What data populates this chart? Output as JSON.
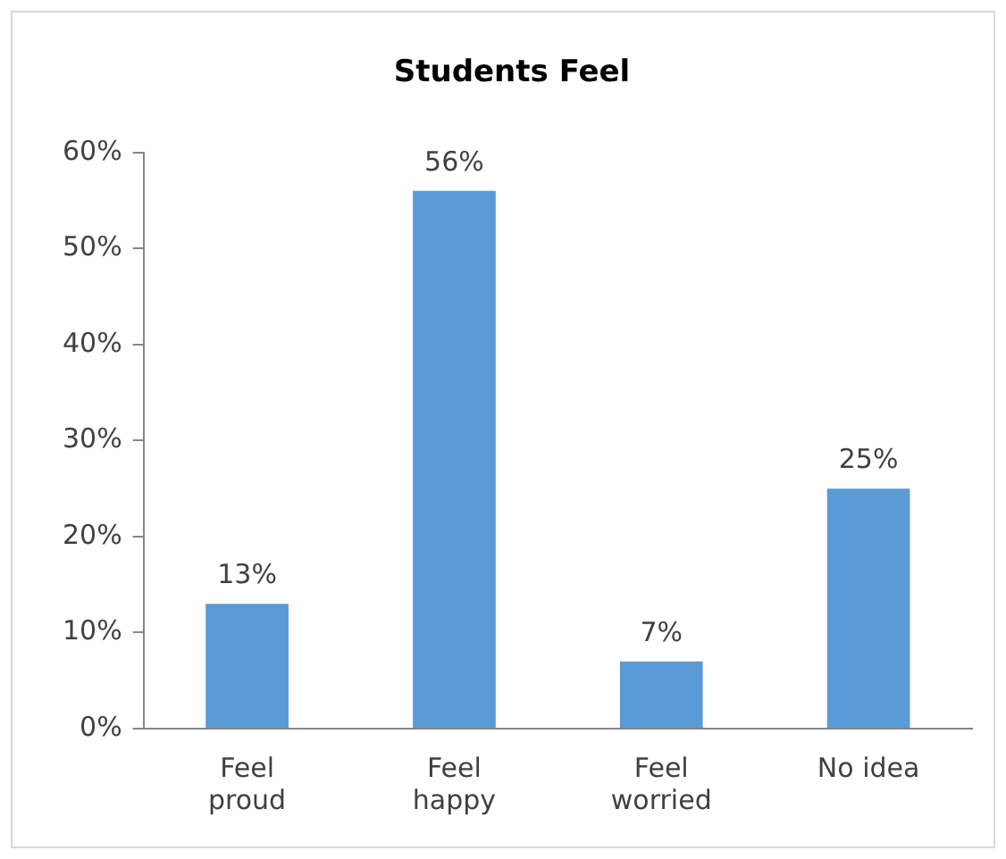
{
  "chart_data": {
    "type": "bar",
    "title": "Students Feel",
    "categories": [
      "Feel proud",
      "Feel happy",
      "Feel worried",
      "No idea"
    ],
    "values": [
      13,
      56,
      7,
      25
    ],
    "value_labels": [
      "13%",
      "56%",
      "7%",
      "25%"
    ],
    "color": "#5b9bd5",
    "ylim": [
      0,
      60
    ],
    "yticks": [
      {
        "value": 0,
        "label": "0%"
      },
      {
        "value": 10,
        "label": "10%"
      },
      {
        "value": 20,
        "label": "20%"
      },
      {
        "value": 30,
        "label": "30%"
      },
      {
        "value": 40,
        "label": "40%"
      },
      {
        "value": 50,
        "label": "50%"
      },
      {
        "value": 60,
        "label": "60%"
      }
    ],
    "grid": false,
    "legend": false
  }
}
